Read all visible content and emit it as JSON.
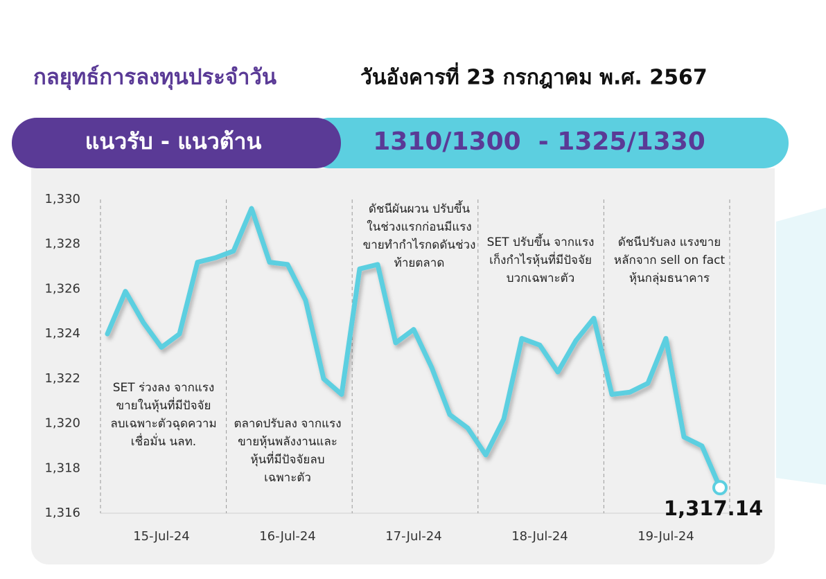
{
  "header": {
    "title": "กลยุทธ์การลงทุนประจำวัน",
    "date": "วันอังคารที่ 23 กรกฎาคม พ.ศ. 2567"
  },
  "banner": {
    "label": "แนวรับ - แนวต้าน",
    "range": "1310/1300  - 1325/1330"
  },
  "chart_data": {
    "type": "line",
    "categories": [
      null,
      null,
      null,
      "15-Jul-24",
      null,
      null,
      null,
      null,
      null,
      null,
      "16-Jul-24",
      null,
      null,
      null,
      null,
      null,
      null,
      "17-Jul-24",
      null,
      null,
      null,
      null,
      null,
      null,
      "18-Jul-24",
      null,
      null,
      null,
      null,
      null,
      null,
      "19-Jul-24",
      null,
      null,
      null
    ],
    "values": [
      1324.0,
      1325.9,
      1324.5,
      1323.4,
      1324.0,
      1327.2,
      1327.4,
      1327.7,
      1329.6,
      1327.2,
      1327.1,
      1325.5,
      1322.0,
      1321.3,
      1326.9,
      1327.1,
      1323.6,
      1324.2,
      1322.5,
      1320.4,
      1319.8,
      1318.6,
      1320.2,
      1323.8,
      1323.5,
      1322.3,
      1323.7,
      1324.7,
      1321.3,
      1321.4,
      1321.8,
      1323.8,
      1319.4,
      1319.0,
      1317.14
    ],
    "value_labels": [
      null,
      null,
      null,
      null,
      null,
      null,
      null,
      null,
      null,
      null,
      null,
      null,
      null,
      null,
      null,
      null,
      null,
      null,
      null,
      null,
      null,
      null,
      null,
      null,
      null,
      null,
      null,
      null,
      null,
      null,
      null,
      null,
      null,
      null,
      "1,317.14"
    ],
    "color": "#5ccfe0",
    "ylim": [
      1316,
      1330
    ],
    "yticks": [
      {
        "value": 1316,
        "label": "1,316"
      },
      {
        "value": 1318,
        "label": "1,318"
      },
      {
        "value": 1320,
        "label": "1,320"
      },
      {
        "value": 1322,
        "label": "1,322"
      },
      {
        "value": 1324,
        "label": "1,324"
      },
      {
        "value": 1326,
        "label": "1,326"
      },
      {
        "value": 1328,
        "label": "1,328"
      },
      {
        "value": 1330,
        "label": "1,330"
      }
    ],
    "annotations": [
      [
        "SET ร่วงลง จากแรง",
        "ขายในหุ้นที่มีปัจจัย",
        "ลบเฉพาะตัวฉุดความ",
        "เชื่อมั่น นลท."
      ],
      [
        "ตลาดปรับลง จากแรง",
        "ขายหุ้นพลังงานและ",
        "หุ้นที่มีปัจจัยลบ",
        "เฉพาะตัว"
      ],
      [
        "ดัชนีผันผวน ปรับขึ้น",
        "ในช่วงแรกก่อนมีแรง",
        "ขายทำกำไรกดดันช่วง",
        "ท้ายตลาด"
      ],
      [
        "SET ปรับขึ้น จากแรง",
        "เก็งกำไรหุ้นที่มีปัจจัย",
        "บวกเฉพาะตัว"
      ],
      [
        "ดัชนีปรับลง แรงขาย",
        "หลักจาก sell on fact",
        "หุ้นกลุ่มธนาคาร"
      ]
    ]
  }
}
